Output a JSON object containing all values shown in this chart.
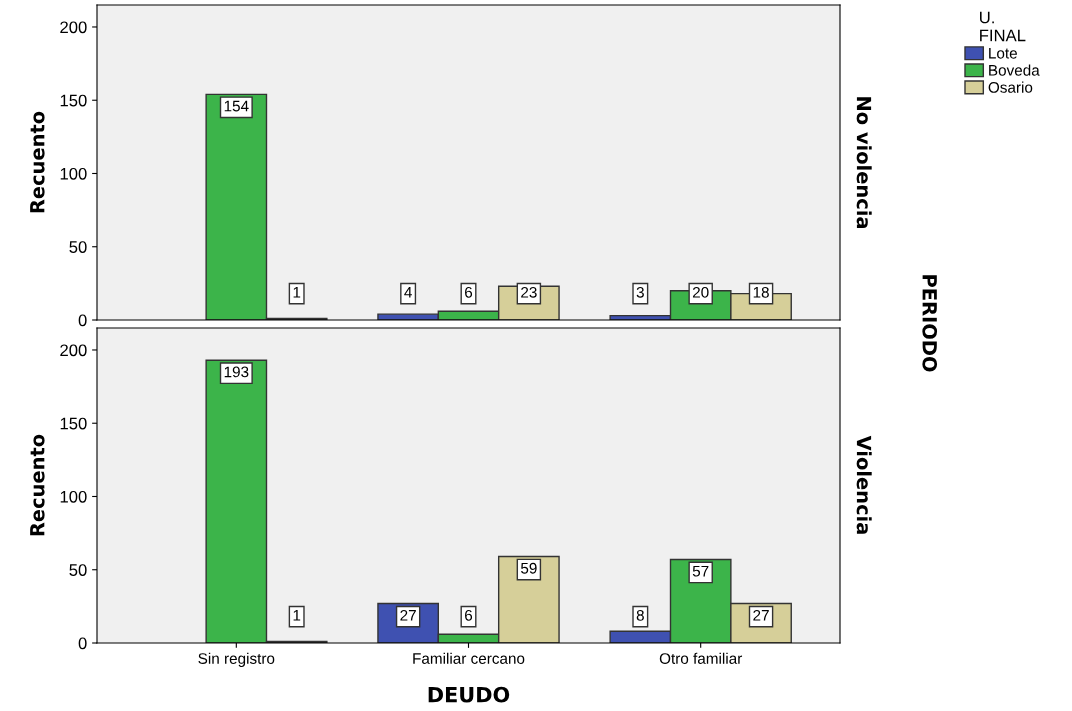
{
  "chart_data": [
    {
      "type": "bar",
      "ylabel": "Recuento",
      "categories": [
        null,
        null,
        null
      ],
      "series": [
        {
          "name": "Lote",
          "color": "#3f51b1",
          "values": [
            null,
            4,
            3
          ]
        },
        {
          "name": "Boveda",
          "color": "#3cb44a",
          "values": [
            154,
            6,
            20
          ]
        },
        {
          "name": "Osario",
          "color": "#d6cf99",
          "values": [
            1,
            23,
            18
          ]
        }
      ],
      "ylim": [
        0,
        215
      ],
      "yticks": [
        0,
        50,
        100,
        150,
        200
      ],
      "data_labels": true,
      "tick_labels": "y",
      "legend": "right",
      "legend_title": "U.\nFINAL",
      "annotations": [
        "No violencia",
        "PERIODO"
      ],
      "grid": false
    },
    {
      "type": "bar",
      "annotations": [
        "Violencia"
      ],
      "ylabel": "Recuento",
      "xlabel": "DEUDO",
      "categories": [
        "Sin registro",
        "Familiar cercano",
        "Otro familiar"
      ],
      "series": [
        {
          "color": "#3f51b1",
          "values": [
            null,
            27,
            8
          ]
        },
        {
          "color": "#3cb44a",
          "values": [
            193,
            6,
            57
          ]
        },
        {
          "color": "#d6cf99",
          "values": [
            1,
            59,
            27
          ]
        }
      ],
      "ylim": [
        0,
        215
      ],
      "yticks": [
        0,
        50,
        100,
        150,
        200
      ],
      "data_labels": true,
      "grid": false
    }
  ]
}
